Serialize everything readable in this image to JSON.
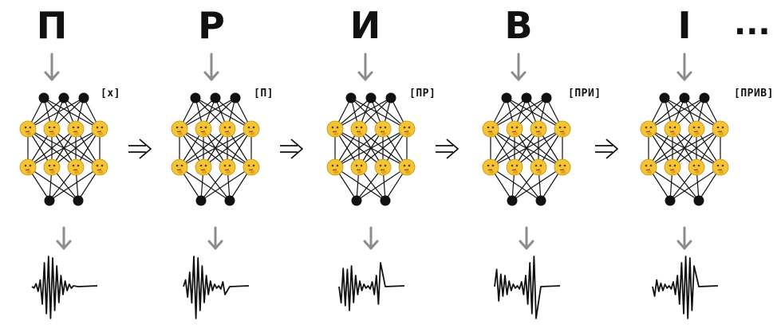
{
  "steps": [
    {
      "letter": "П",
      "context": "[x]"
    },
    {
      "letter": "Р",
      "context": "[П]"
    },
    {
      "letter": "И",
      "context": "[ПР]"
    },
    {
      "letter": "В",
      "context": "[ПРИ]"
    },
    {
      "letter": "I",
      "context": "[ПРИВ]"
    }
  ],
  "continuation": "...",
  "icons": {
    "neuron": "thinking-face-icon",
    "waveform": "audio-waveform-icon",
    "arrow": "down-arrow-icon",
    "transition": "double-arrow-icon"
  },
  "colors": {
    "ink": "#111111",
    "arrow": "#8c8c8c",
    "neuron_face": "#f5c431"
  }
}
